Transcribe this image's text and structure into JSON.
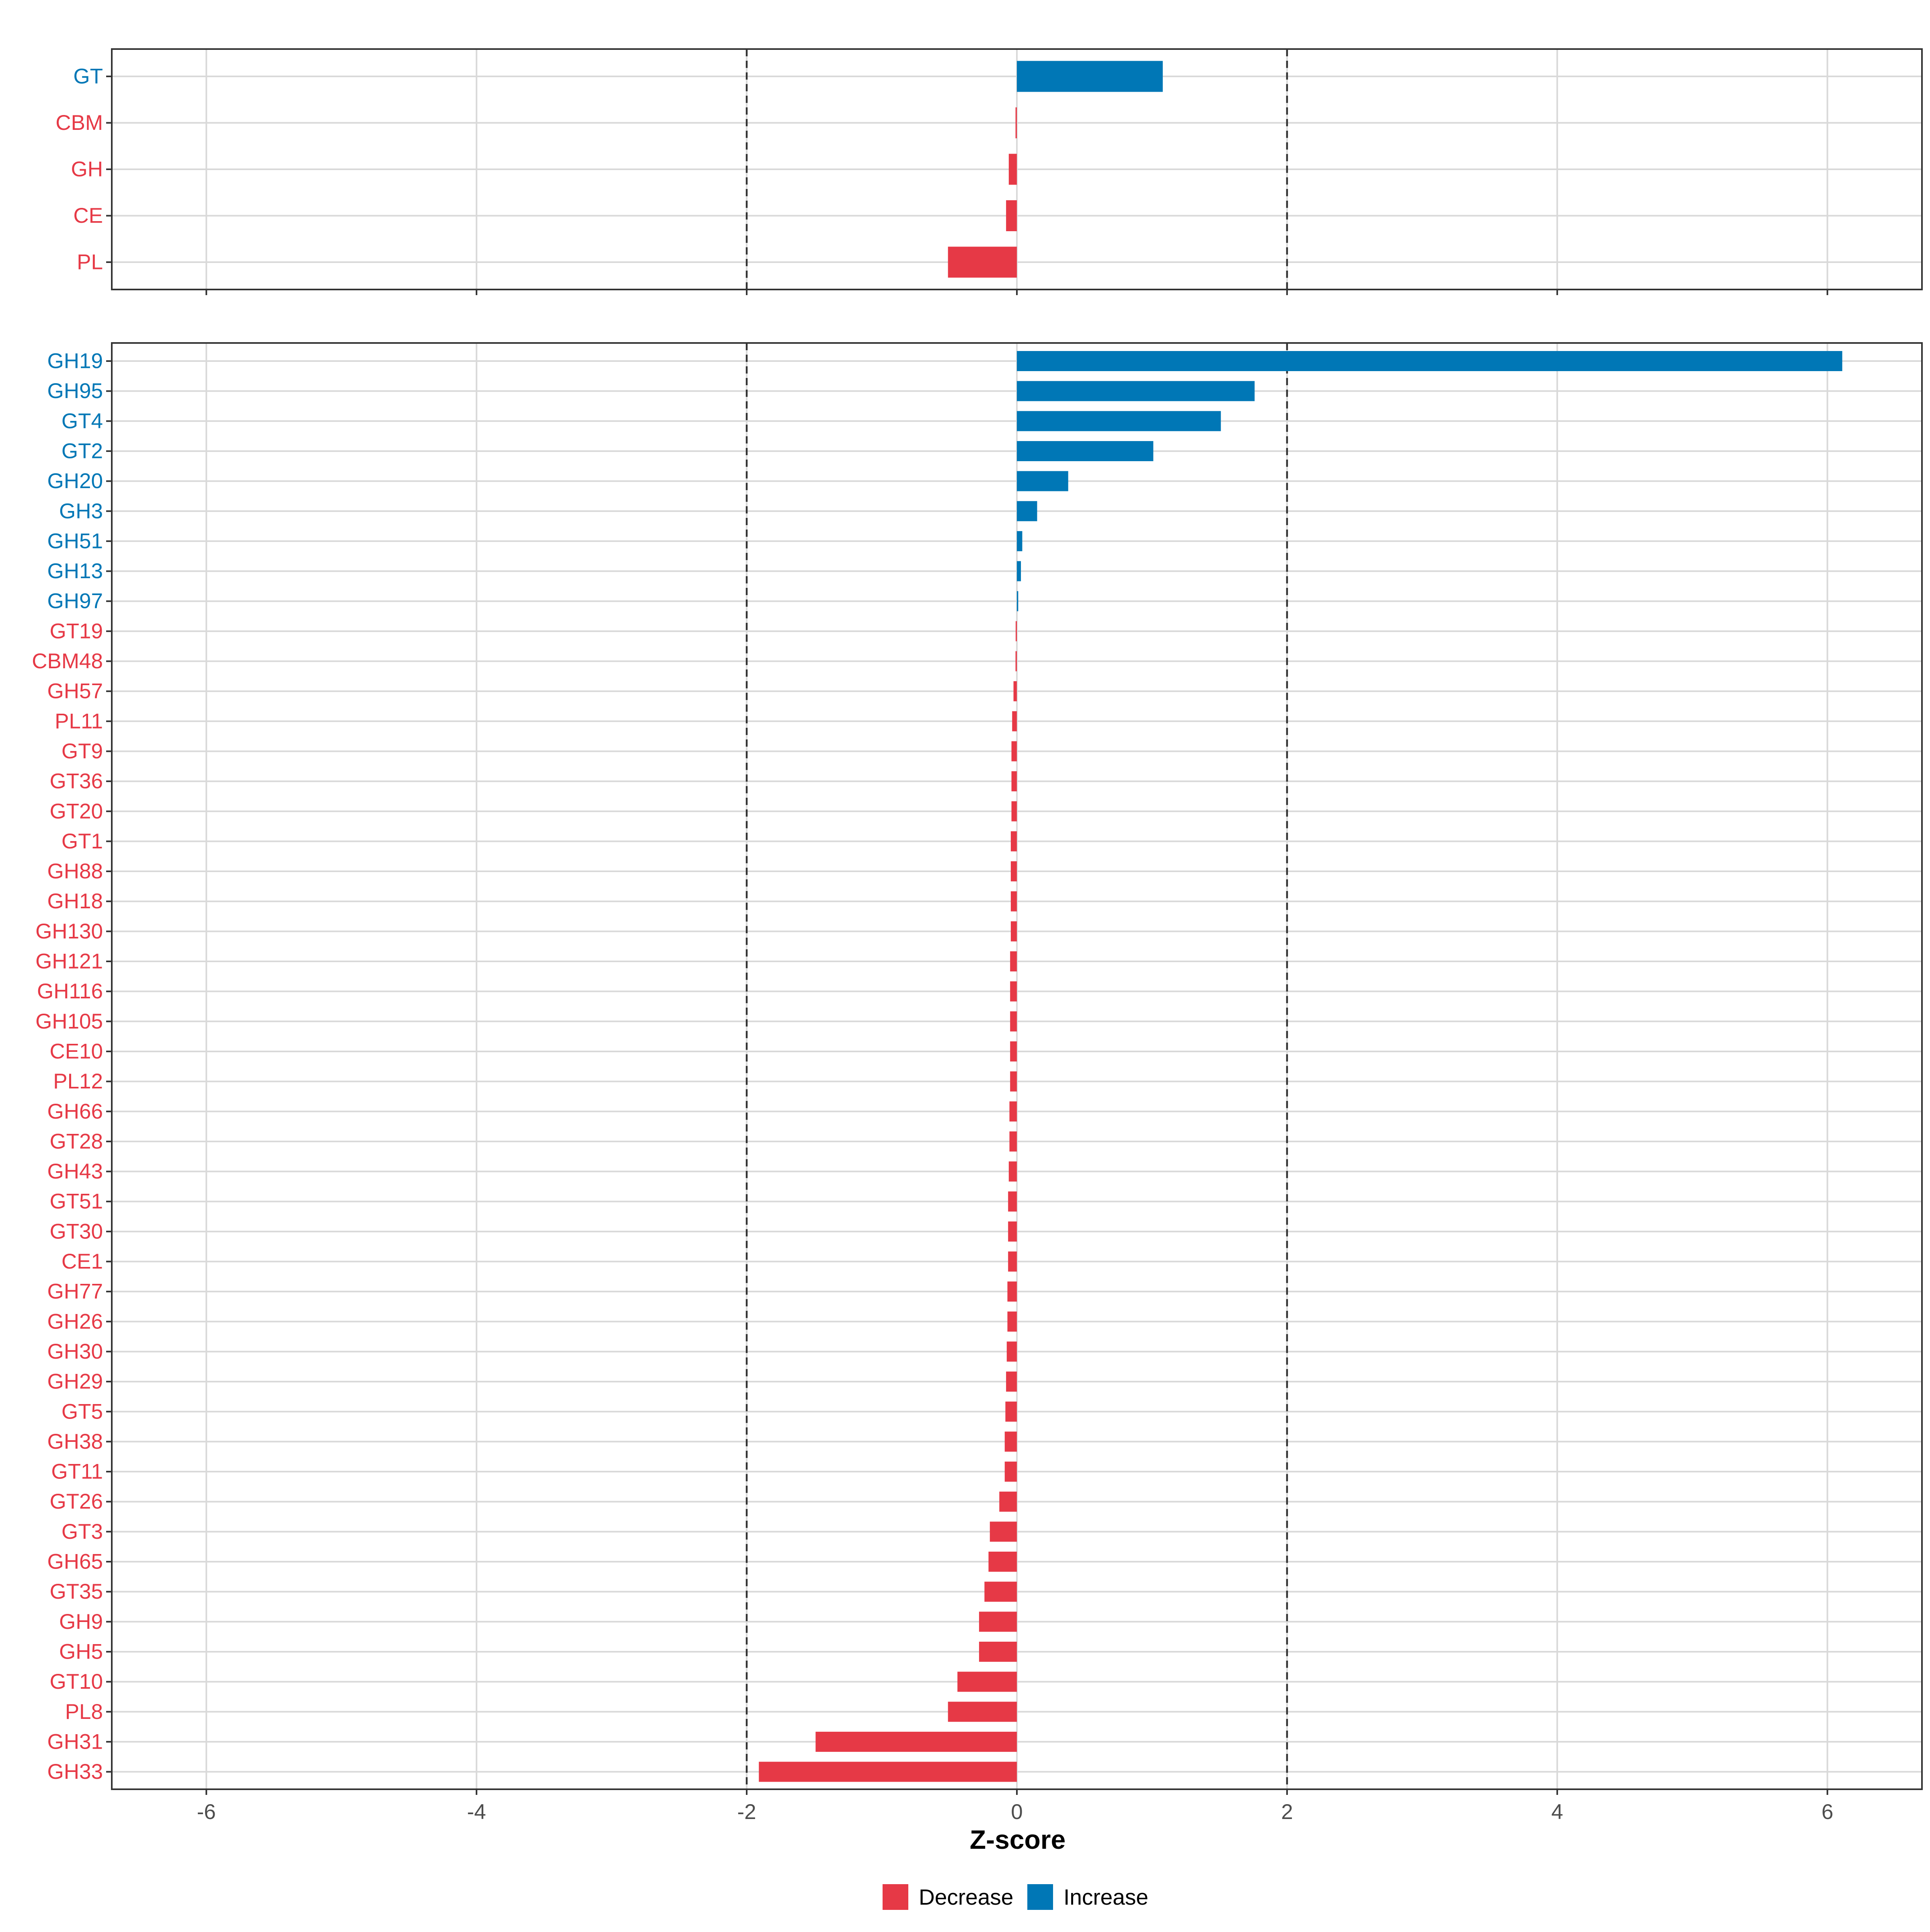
{
  "colors": {
    "decrease": "#E63946",
    "increase": "#0077B6",
    "panel_border": "#333333",
    "grid": "#D9D9D9",
    "threshold_line": "#333333",
    "axis_text": "#4D4D4D"
  },
  "chart_data": [
    {
      "type": "bar",
      "orientation": "horizontal",
      "panel": "top",
      "categories": [
        "GT",
        "CBM",
        "GH",
        "CE",
        "PL"
      ],
      "values": [
        1.08,
        -0.01,
        -0.06,
        -0.08,
        -0.51
      ],
      "direction": [
        "Increase",
        "Decrease",
        "Decrease",
        "Decrease",
        "Decrease"
      ],
      "xlim": [
        -6.7,
        6.7
      ],
      "threshold_lines": [
        -2,
        2
      ],
      "xticks": [
        -6,
        -4,
        -2,
        0,
        2,
        4,
        6
      ],
      "grid": true,
      "show_tick_labels": false
    },
    {
      "type": "bar",
      "orientation": "horizontal",
      "panel": "bottom",
      "categories": [
        "GH19",
        "GH95",
        "GT4",
        "GT2",
        "GH20",
        "GH3",
        "GH51",
        "GH13",
        "GH97",
        "GT19",
        "CBM48",
        "GH57",
        "PL11",
        "GT9",
        "GT36",
        "GT20",
        "GT1",
        "GH88",
        "GH18",
        "GH130",
        "GH121",
        "GH116",
        "GH105",
        "CE10",
        "PL12",
        "GH66",
        "GT28",
        "GH43",
        "GT51",
        "GT30",
        "CE1",
        "GH77",
        "GH26",
        "GH30",
        "GH29",
        "GT5",
        "GH38",
        "GT11",
        "GT26",
        "GT3",
        "GH65",
        "GT35",
        "GH9",
        "GH5",
        "GT10",
        "PL8",
        "GH31",
        "GH33"
      ],
      "values": [
        6.11,
        1.76,
        1.51,
        1.01,
        0.38,
        0.15,
        0.04,
        0.03,
        0.01,
        -0.003,
        -0.01,
        -0.025,
        -0.035,
        -0.04,
        -0.04,
        -0.04,
        -0.045,
        -0.045,
        -0.045,
        -0.045,
        -0.05,
        -0.05,
        -0.05,
        -0.05,
        -0.05,
        -0.055,
        -0.055,
        -0.06,
        -0.065,
        -0.065,
        -0.065,
        -0.07,
        -0.07,
        -0.075,
        -0.08,
        -0.085,
        -0.09,
        -0.09,
        -0.13,
        -0.2,
        -0.21,
        -0.24,
        -0.28,
        -0.28,
        -0.44,
        -0.51,
        -1.49,
        -1.91
      ],
      "direction": [
        "Increase",
        "Increase",
        "Increase",
        "Increase",
        "Increase",
        "Increase",
        "Increase",
        "Increase",
        "Increase",
        "Decrease",
        "Decrease",
        "Decrease",
        "Decrease",
        "Decrease",
        "Decrease",
        "Decrease",
        "Decrease",
        "Decrease",
        "Decrease",
        "Decrease",
        "Decrease",
        "Decrease",
        "Decrease",
        "Decrease",
        "Decrease",
        "Decrease",
        "Decrease",
        "Decrease",
        "Decrease",
        "Decrease",
        "Decrease",
        "Decrease",
        "Decrease",
        "Decrease",
        "Decrease",
        "Decrease",
        "Decrease",
        "Decrease",
        "Decrease",
        "Decrease",
        "Decrease",
        "Decrease",
        "Decrease",
        "Decrease",
        "Decrease",
        "Decrease",
        "Decrease",
        "Decrease"
      ],
      "xlim": [
        -6.7,
        6.7
      ],
      "threshold_lines": [
        -2,
        2
      ],
      "xticks": [
        -6,
        -4,
        -2,
        0,
        2,
        4,
        6
      ],
      "xtick_labels": [
        "-6",
        "-4",
        "-2",
        "0",
        "2",
        "4",
        "6"
      ],
      "grid": true,
      "show_tick_labels": true
    }
  ],
  "xlabel": "Z-score",
  "legend": {
    "placement": "bottom-center",
    "items": [
      {
        "label": "Decrease",
        "color_key": "decrease"
      },
      {
        "label": "Increase",
        "color_key": "increase"
      }
    ]
  }
}
